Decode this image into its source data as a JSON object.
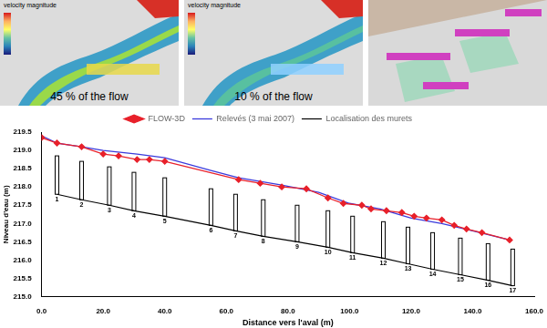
{
  "figure": {
    "panels": [
      {
        "caption": "45 % of the flow",
        "colorbar_title": "velocity magnitude"
      },
      {
        "caption": "10 % of the flow",
        "colorbar_title": "velocity magnitude"
      }
    ]
  },
  "chart_data": {
    "type": "line",
    "x_label": "Distance vers l'aval (m)",
    "y_label": "Niveau d'eau (m)",
    "xlim": [
      0,
      160
    ],
    "xticks": [
      {
        "value": 0,
        "label": "0.0"
      },
      {
        "value": 20,
        "label": "20.0"
      },
      {
        "value": 40,
        "label": "40.0"
      },
      {
        "value": 60,
        "label": "60.0"
      },
      {
        "value": 80,
        "label": "80.0"
      },
      {
        "value": 100,
        "label": "100.0"
      },
      {
        "value": 120,
        "label": "120.0"
      },
      {
        "value": 140,
        "label": "140.0"
      },
      {
        "value": 160,
        "label": "160.0"
      }
    ],
    "ylim": [
      215,
      219.5
    ],
    "yticks": [
      {
        "value": 215,
        "label": "215.0"
      },
      215.5,
      {
        "value": 216,
        "label": "216.0"
      },
      216.5,
      {
        "value": 217,
        "label": "217.0"
      },
      217.5,
      {
        "value": 218,
        "label": "218.0"
      },
      218.5,
      {
        "value": 219,
        "label": "219.0"
      },
      219.5
    ],
    "grid": false,
    "legend": "top",
    "series": [
      {
        "name": "FLOW-3D",
        "color": "#e8202a",
        "marker": "diamond",
        "line_style": "solid",
        "x": [
          0,
          5,
          13,
          20,
          25,
          31,
          35,
          40,
          64,
          71,
          78,
          86,
          93,
          98,
          104,
          107,
          112,
          117,
          121,
          125,
          130,
          134,
          138,
          143,
          152
        ],
        "values": [
          219.35,
          219.2,
          219.1,
          218.9,
          218.85,
          218.75,
          218.75,
          218.7,
          218.2,
          218.1,
          218.0,
          217.95,
          217.7,
          217.55,
          217.5,
          217.4,
          217.35,
          217.3,
          217.2,
          217.15,
          217.1,
          216.95,
          216.85,
          216.75,
          216.55
        ]
      },
      {
        "name": "Relevés (3 mai 2007)",
        "color": "#3b3bdc",
        "marker": "none",
        "line_style": "solid",
        "x": [
          0,
          5,
          13,
          20,
          31,
          40,
          55,
          64,
          78,
          90,
          100,
          110,
          120,
          130,
          140,
          152
        ],
        "values": [
          219.4,
          219.2,
          219.1,
          219.0,
          218.9,
          218.8,
          218.45,
          218.25,
          218.05,
          217.85,
          217.55,
          217.4,
          217.15,
          217.0,
          216.8,
          216.55
        ]
      },
      {
        "name": "Localisation des murets",
        "color": "#000000",
        "marker": "none",
        "line_style": "solid",
        "walls": [
          {
            "label": "1",
            "x": 5,
            "bottom": 217.8,
            "top": 218.85
          },
          {
            "label": "2",
            "x": 13,
            "bottom": 217.65,
            "top": 218.7
          },
          {
            "label": "3",
            "x": 22,
            "bottom": 217.5,
            "top": 218.55
          },
          {
            "label": "4",
            "x": 30,
            "bottom": 217.35,
            "top": 218.4
          },
          {
            "label": "5",
            "x": 40,
            "bottom": 217.2,
            "top": 218.25
          },
          {
            "label": "6",
            "x": 55,
            "bottom": 216.95,
            "top": 217.95
          },
          {
            "label": "7",
            "x": 63,
            "bottom": 216.8,
            "top": 217.8
          },
          {
            "label": "8",
            "x": 72,
            "bottom": 216.65,
            "top": 217.65
          },
          {
            "label": "9",
            "x": 83,
            "bottom": 216.5,
            "top": 217.5
          },
          {
            "label": "10",
            "x": 93,
            "bottom": 216.35,
            "top": 217.35
          },
          {
            "label": "11",
            "x": 101,
            "bottom": 216.2,
            "top": 217.2
          },
          {
            "label": "12",
            "x": 111,
            "bottom": 216.05,
            "top": 217.05
          },
          {
            "label": "13",
            "x": 119,
            "bottom": 215.9,
            "top": 216.9
          },
          {
            "label": "14",
            "x": 127,
            "bottom": 215.75,
            "top": 216.75
          },
          {
            "label": "15",
            "x": 136,
            "bottom": 215.6,
            "top": 216.6
          },
          {
            "label": "16",
            "x": 145,
            "bottom": 215.45,
            "top": 216.45
          },
          {
            "label": "17",
            "x": 153,
            "bottom": 215.3,
            "top": 216.3
          }
        ]
      }
    ]
  }
}
